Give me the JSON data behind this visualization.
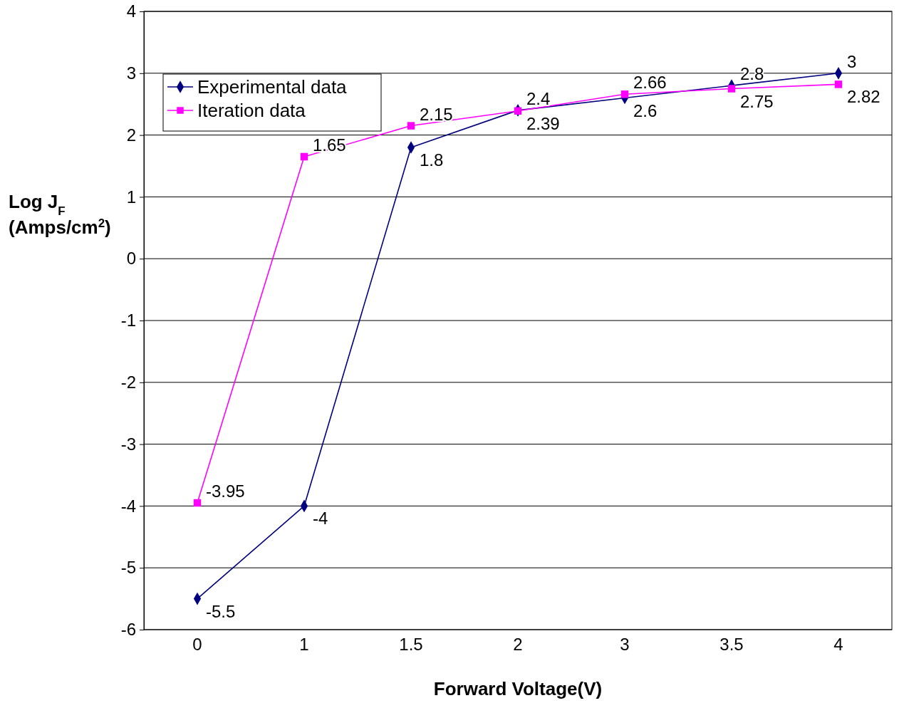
{
  "chart_data": {
    "type": "line",
    "xlabel": "Forward Voltage(V)",
    "ylabel": "Log J$_{F}$ (Amps/cm$^{2}$)",
    "categories": [
      "0",
      "1",
      "1.5",
      "2",
      "3",
      "3.5",
      "4"
    ],
    "series": [
      {
        "name": "Experimental data",
        "color": "#000080",
        "marker": "diamond",
        "values": [
          -5.5,
          -4,
          1.8,
          2.4,
          2.6,
          2.8,
          3
        ]
      },
      {
        "name": "Iteration data",
        "color": "#ff00ff",
        "marker": "square",
        "values": [
          -3.95,
          1.65,
          2.15,
          2.39,
          2.66,
          2.75,
          2.82
        ]
      }
    ],
    "ylim": [
      -6,
      4
    ],
    "yticks": [
      -6,
      -5,
      -4,
      -3,
      -2,
      -1,
      0,
      1,
      2,
      3,
      4
    ],
    "grid": "y",
    "legend": "top left",
    "data_labels": true
  }
}
